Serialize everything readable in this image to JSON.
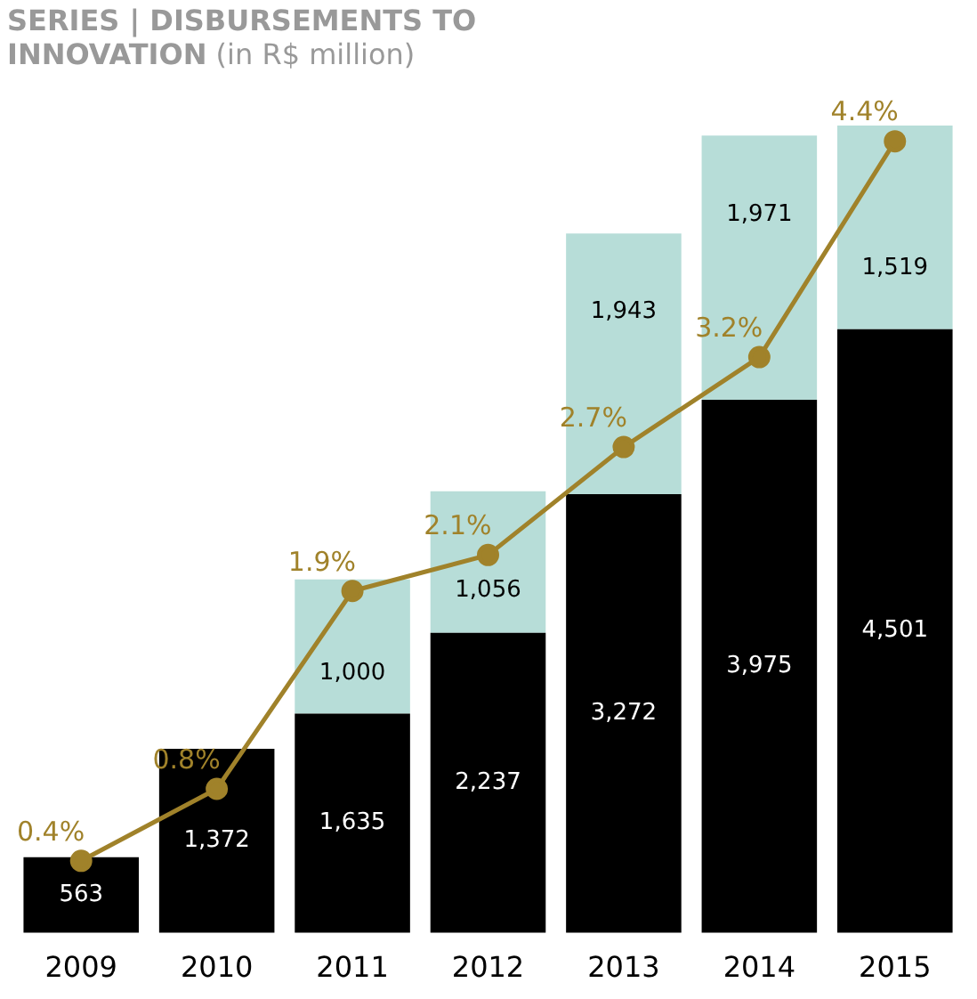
{
  "chart_data": {
    "type": "bar",
    "title": "SERIES | DISBURSEMENTS TO INNOVATION",
    "subtitle": "(in R$ million)",
    "categories": [
      "2009",
      "2010",
      "2011",
      "2012",
      "2013",
      "2014",
      "2015"
    ],
    "stacked": true,
    "data_labels": true,
    "series": [
      {
        "color": "#000000",
        "value_labels": [
          "563",
          "1,372",
          "1,635",
          "2,237",
          "3,272",
          "3,975",
          "4,501"
        ],
        "values": [
          563,
          1372,
          1635,
          2237,
          3272,
          3975,
          4501
        ]
      },
      {
        "color": "#b7ddd8",
        "value_labels": [
          null,
          null,
          "1,000",
          "1,056",
          "1,943",
          "1,971",
          "1,519"
        ],
        "values": [
          null,
          null,
          1000,
          1056,
          1943,
          1971,
          1519
        ]
      },
      {
        "type": "line",
        "axis": "y2",
        "color": "#a0822a",
        "marker": "circle",
        "value_labels": [
          "0.4%",
          "0.8%",
          "1.9%",
          "2.1%",
          "2.7%",
          "3.2%",
          "4.4%"
        ],
        "values": [
          0.4,
          0.8,
          1.9,
          2.1,
          2.7,
          3.2,
          4.4
        ]
      }
    ]
  }
}
